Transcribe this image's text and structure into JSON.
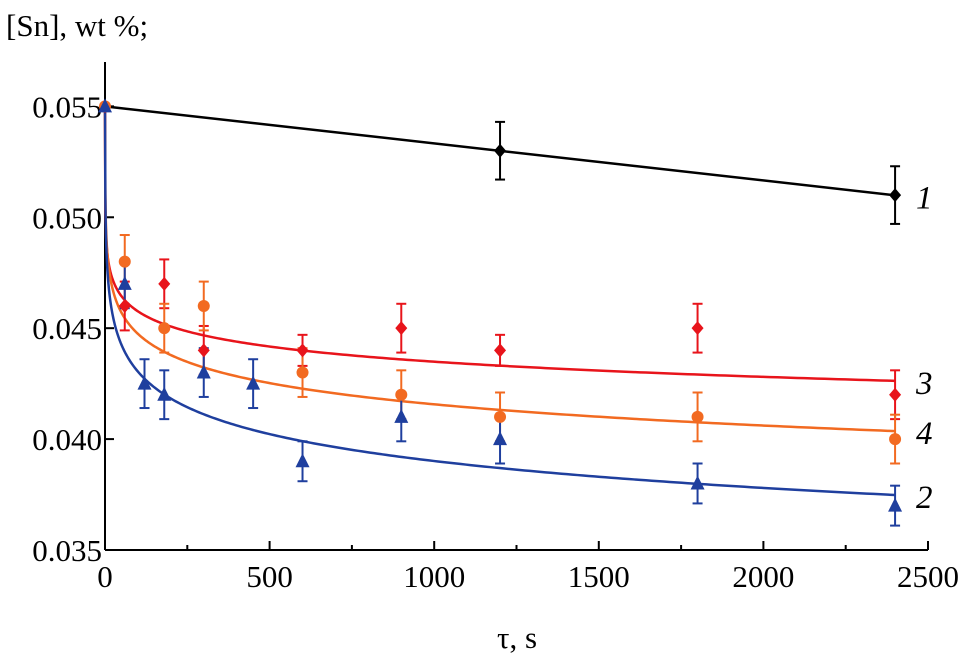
{
  "chart_data": {
    "type": "scatter",
    "ylabel": "[Sn], wt %;",
    "xlabel": "τ, s",
    "xlim": [
      0,
      2500
    ],
    "ylim": [
      0.035,
      0.057
    ],
    "xticks": [
      0,
      500,
      1000,
      1500,
      2000,
      2500
    ],
    "yticks": [
      0.035,
      0.04,
      0.045,
      0.05,
      0.055
    ],
    "ytick_labels": [
      "0.035",
      "0.040",
      "0.045",
      "0.050",
      "0.055"
    ],
    "grid": false,
    "series": [
      {
        "label": "1",
        "color": "#000000",
        "marker": "diamond",
        "points": [
          [
            0,
            0.055
          ],
          [
            1200,
            0.053
          ],
          [
            2400,
            0.051
          ]
        ],
        "error": [
          0,
          0.0013,
          0.0013
        ],
        "fit": {
          "form": "linear",
          "a": 0.055,
          "b": -1.67e-06
        }
      },
      {
        "label": "3",
        "color": "#e8141b",
        "marker": "diamond",
        "points": [
          [
            0,
            0.055
          ],
          [
            60,
            0.046
          ],
          [
            180,
            0.047
          ],
          [
            300,
            0.044
          ],
          [
            600,
            0.044
          ],
          [
            900,
            0.045
          ],
          [
            1200,
            0.044
          ],
          [
            1800,
            0.045
          ],
          [
            2400,
            0.042
          ]
        ],
        "error": [
          0,
          0.0011,
          0.0011,
          0.0011,
          0.0007,
          0.0011,
          0.0007,
          0.0011,
          0.0011
        ],
        "fit": {
          "form": "log",
          "a": 0.0503,
          "b": -0.000986
        }
      },
      {
        "label": "4",
        "color": "#f26a21",
        "marker": "circle",
        "points": [
          [
            0,
            0.055
          ],
          [
            60,
            0.048
          ],
          [
            180,
            0.045
          ],
          [
            300,
            0.046
          ],
          [
            600,
            0.043
          ],
          [
            900,
            0.042
          ],
          [
            1200,
            0.041
          ],
          [
            1800,
            0.041
          ],
          [
            2400,
            0.04
          ]
        ],
        "error": [
          0,
          0.0012,
          0.0011,
          0.0011,
          0.0011,
          0.0011,
          0.0011,
          0.0011,
          0.0011
        ],
        "fit": {
          "form": "log",
          "a": 0.0511,
          "b": -0.00138
        }
      },
      {
        "label": "2",
        "color": "#1f3f9e",
        "marker": "triangle",
        "points": [
          [
            0,
            0.055
          ],
          [
            60,
            0.047
          ],
          [
            120,
            0.0425
          ],
          [
            180,
            0.042
          ],
          [
            300,
            0.043
          ],
          [
            450,
            0.0425
          ],
          [
            600,
            0.039
          ],
          [
            900,
            0.041
          ],
          [
            1200,
            0.04
          ],
          [
            1800,
            0.038
          ],
          [
            2400,
            0.037
          ]
        ],
        "error": [
          0,
          0.0011,
          0.0011,
          0.0011,
          0.0011,
          0.0011,
          0.0009,
          0.0011,
          0.0011,
          0.0009,
          0.0009
        ],
        "fit": {
          "form": "log",
          "a": 0.0511,
          "b": -0.00175
        }
      }
    ]
  }
}
